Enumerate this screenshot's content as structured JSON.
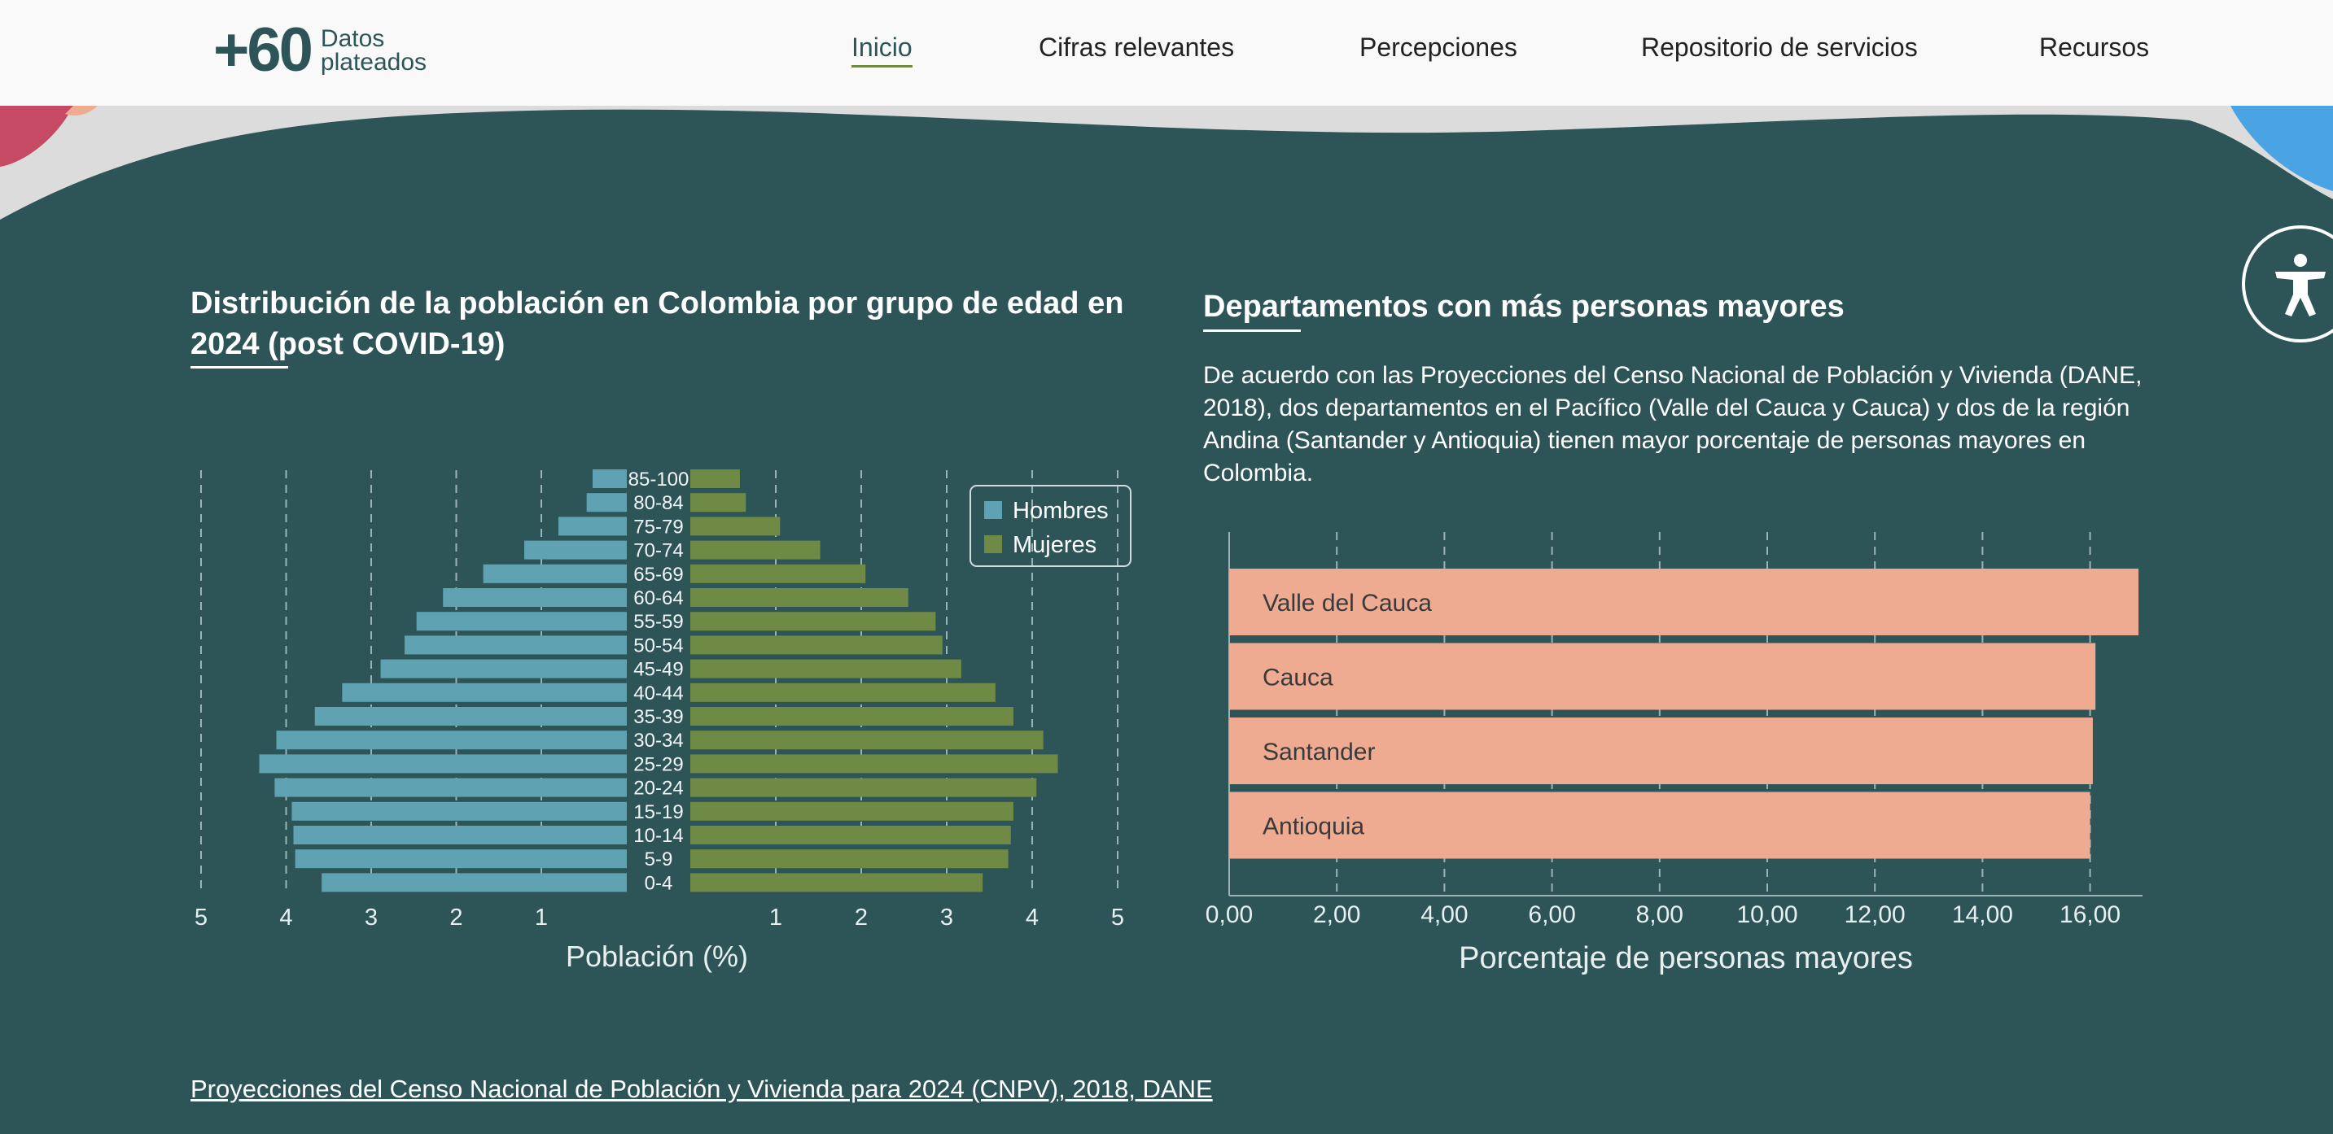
{
  "logo": {
    "big": "+60",
    "line1": "Datos",
    "line2": "plateados"
  },
  "nav": {
    "items": [
      {
        "label": "Inicio",
        "active": true
      },
      {
        "label": "Cifras relevantes",
        "active": false
      },
      {
        "label": "Percepciones",
        "active": false
      },
      {
        "label": "Repositorio de servicios",
        "active": false
      },
      {
        "label": "Recursos",
        "active": false
      }
    ]
  },
  "accessibility": {
    "icon": "accessibility-icon"
  },
  "left": {
    "title_line1": "Distribución de la población en Colombia por grupo de edad en",
    "title_line2": "2024 (post COVID-19)"
  },
  "right": {
    "title": "Departamentos con más personas mayores",
    "description": "De acuerdo con las Proyecciones del Censo Nacional de Población y Vivienda (DANE, 2018), dos departamentos en el Pacífico (Valle del Cauca y Cauca) y dos de la región Andina (Santander y Antioquia) tienen mayor porcentaje de personas mayores en Colombia."
  },
  "source_link": "Proyecciones del Censo Nacional de Población y Vivienda para 2024 (CNPV), 2018, DANE",
  "colors": {
    "background": "#2d5557",
    "hombres": "#5fa3b3",
    "mujeres": "#6f8a44",
    "departamentos": "#eeab91",
    "nav_bg": "#f9f9f9"
  },
  "chart_data": [
    {
      "type": "bar",
      "orientation": "horizontal",
      "subtype": "population-pyramid",
      "xlabel": "Población (%)",
      "xlim": [
        0,
        5
      ],
      "xticks": [
        1,
        2,
        3,
        4,
        5
      ],
      "grid": true,
      "legend_position": "top-right",
      "categories": [
        "85-100",
        "80-84",
        "75-79",
        "70-74",
        "65-69",
        "60-64",
        "55-59",
        "50-54",
        "45-49",
        "40-44",
        "35-39",
        "30-34",
        "25-29",
        "20-24",
        "15-19",
        "10-14",
        "5-9",
        "0-4"
      ],
      "series": [
        {
          "name": "Hombres",
          "side": "left",
          "color": "#5fa3b3",
          "values": [
            0.4,
            0.47,
            0.8,
            1.2,
            1.68,
            2.15,
            2.46,
            2.6,
            2.88,
            3.33,
            3.65,
            4.1,
            4.3,
            4.12,
            3.92,
            3.9,
            3.88,
            3.57
          ]
        },
        {
          "name": "Mujeres",
          "side": "right",
          "color": "#6f8a44",
          "values": [
            0.58,
            0.65,
            1.05,
            1.52,
            2.05,
            2.55,
            2.87,
            2.95,
            3.17,
            3.57,
            3.78,
            4.13,
            4.3,
            4.05,
            3.78,
            3.75,
            3.72,
            3.42
          ]
        }
      ]
    },
    {
      "type": "bar",
      "orientation": "horizontal",
      "xlabel": "Porcentaje de personas mayores",
      "xlim": [
        0,
        16.9
      ],
      "xticks": [
        "0,00",
        "2,00",
        "4,00",
        "6,00",
        "8,00",
        "10,00",
        "12,00",
        "14,00",
        "16,00"
      ],
      "grid": true,
      "categories": [
        "Valle del Cauca",
        "Cauca",
        "Santander",
        "Antioquia"
      ],
      "values": [
        16.9,
        16.1,
        16.05,
        16.0
      ]
    }
  ]
}
